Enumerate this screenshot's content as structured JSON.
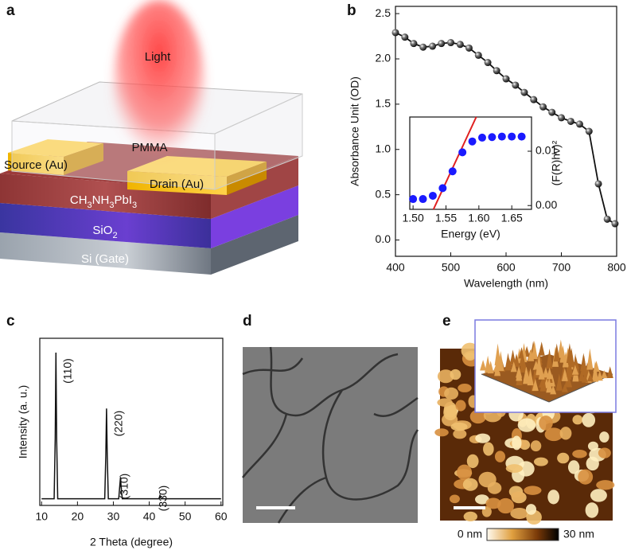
{
  "panel_labels": [
    "a",
    "b",
    "c",
    "d",
    "e"
  ],
  "device": {
    "light": "Light",
    "pmma": "PMMA",
    "source": "Source (Au)",
    "drain": "Drain (Au)",
    "perovskite": [
      "CH",
      "3",
      "NH",
      "3",
      "PbI",
      "3"
    ],
    "oxide": [
      "SiO",
      "2"
    ],
    "gate": "Si (Gate)"
  },
  "chart_data": [
    {
      "type": "line",
      "xlabel": "Wavelength (nm)",
      "ylabel": "Absorbance Unit (OD)",
      "xlim": [
        400,
        800
      ],
      "ylim": [
        -0.18,
        2.58
      ],
      "xticks": [
        400,
        500,
        600,
        700,
        800
      ],
      "yticks": [
        {
          "value": 0,
          "label": "0.0"
        },
        0.5,
        {
          "value": 1,
          "label": "1.0"
        },
        1.5,
        {
          "value": 2,
          "label": "2.0"
        },
        2.5
      ],
      "color": "#111111",
      "x": [
        400,
        417,
        433,
        450,
        467,
        483,
        500,
        517,
        533,
        550,
        567,
        583,
        600,
        617,
        633,
        650,
        667,
        683,
        700,
        717,
        733,
        750,
        767,
        783,
        797
      ],
      "values": [
        2.29,
        2.24,
        2.17,
        2.13,
        2.14,
        2.17,
        2.18,
        2.16,
        2.12,
        2.04,
        1.96,
        1.87,
        1.78,
        1.71,
        1.63,
        1.55,
        1.47,
        1.41,
        1.35,
        1.31,
        1.28,
        1.2,
        0.62,
        0.23,
        0.18
      ]
    },
    {
      "type": "scatter",
      "xlabel": "Energy (eV)",
      "ylabel": "(F(R)hν)²",
      "xlim": [
        1.495,
        1.68
      ],
      "ylim": [
        -0.0007,
        0.0163
      ],
      "xticks": [
        {
          "value": 1.5,
          "label": "1.50"
        },
        1.55,
        {
          "value": 1.6,
          "label": "1.60"
        },
        1.65
      ],
      "yticks": [
        {
          "value": 0,
          "label": "0.00"
        },
        0.01
      ],
      "color": "#1a1aff",
      "x": [
        1.5,
        1.515,
        1.53,
        1.545,
        1.56,
        1.575,
        1.59,
        1.605,
        1.62,
        1.635,
        1.65,
        1.665
      ],
      "values": [
        0.0012,
        0.0012,
        0.0018,
        0.0032,
        0.0063,
        0.0098,
        0.0118,
        0.0125,
        0.0126,
        0.0127,
        0.0127,
        0.0127
      ],
      "fit": {
        "x": [
          1.531,
          1.596
        ],
        "values": [
          -0.0007,
          0.0163
        ],
        "color": "#e02020"
      }
    },
    {
      "type": "line",
      "xlabel": "2 Theta (degree)",
      "ylabel": "Intensity (a. u.)",
      "xlim": [
        9.5,
        60.5
      ],
      "ylim": [
        0,
        100
      ],
      "xticks": [
        10,
        20,
        30,
        40,
        50,
        60
      ],
      "color": "#111111",
      "x": [
        10,
        13.5,
        13.8,
        14.0,
        14.2,
        14.5,
        27.6,
        27.9,
        28.1,
        28.3,
        28.6,
        31.5,
        31.8,
        32.0,
        32.2,
        32.5,
        42.7,
        43.0,
        43.3,
        60
      ],
      "values": [
        4,
        4,
        40,
        91.4,
        40,
        4,
        4,
        30,
        58,
        30,
        4,
        4,
        12,
        17,
        10,
        4,
        4,
        6,
        4,
        4
      ],
      "annotations": [
        "(110)",
        "(220)",
        "(310)",
        "(330)"
      ]
    }
  ],
  "afm": {
    "colorbar_min": "0 nm",
    "colorbar_max": "30 nm"
  }
}
